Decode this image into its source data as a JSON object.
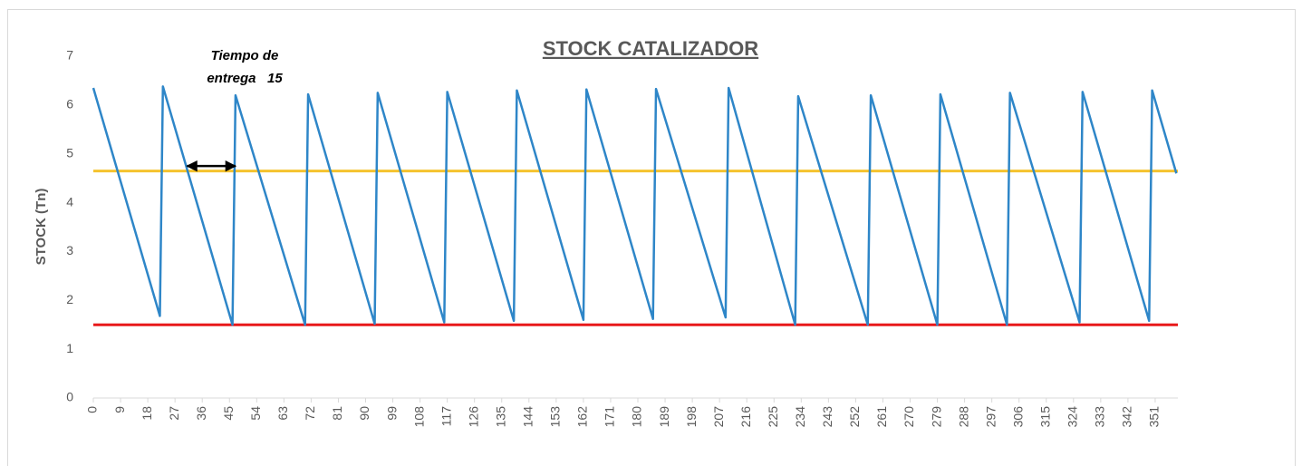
{
  "chart_data": {
    "type": "line",
    "title": "STOCK  CATALIZADOR",
    "y_label": "STOCK (Tn)",
    "x": [
      0,
      22,
      23,
      46,
      47,
      70,
      71,
      93,
      94,
      116,
      117,
      139,
      140,
      162,
      163,
      185,
      186,
      209,
      210,
      232,
      233,
      256,
      257,
      279,
      280,
      302,
      303,
      326,
      327,
      349,
      350,
      358
    ],
    "values": [
      6.35,
      1.68,
      6.38,
      1.5,
      6.2,
      1.5,
      6.22,
      1.52,
      6.25,
      1.55,
      6.27,
      1.58,
      6.3,
      1.6,
      6.32,
      1.62,
      6.33,
      1.65,
      6.35,
      1.5,
      6.18,
      1.5,
      6.2,
      1.5,
      6.22,
      1.5,
      6.25,
      1.55,
      6.27,
      1.58,
      6.3,
      4.6
    ],
    "color": "#2e86c8",
    "hlines": [
      {
        "value": 4.65,
        "color": "#f5c22e"
      },
      {
        "value": 1.5,
        "color": "#e8191a"
      }
    ],
    "annotation": {
      "text": [
        "Tiempo de",
        "entrega   15"
      ],
      "arrow": [
        31,
        47
      ],
      "arrow_y": 4.75
    },
    "xlim": [
      0,
      358.5
    ],
    "xticks": [
      0,
      9,
      18,
      27,
      36,
      45,
      54,
      63,
      72,
      81,
      90,
      99,
      108,
      117,
      126,
      135,
      144,
      153,
      162,
      171,
      180,
      189,
      198,
      207,
      216,
      225,
      234,
      243,
      252,
      261,
      270,
      279,
      288,
      297,
      306,
      315,
      324,
      333,
      342,
      351
    ],
    "ylim": [
      0,
      7
    ],
    "yticks": [
      0,
      1,
      2,
      3,
      4,
      5,
      6,
      7
    ],
    "grid": false
  }
}
